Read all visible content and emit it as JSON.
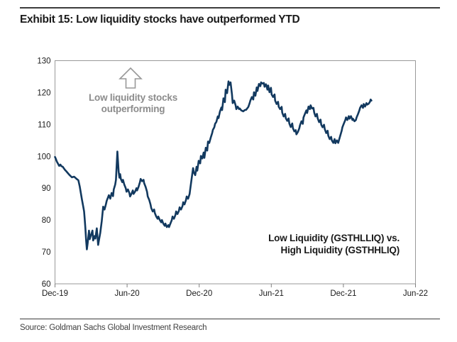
{
  "header": {
    "title": "Exhibit 15: Low liquidity stocks have outperformed YTD"
  },
  "annotation": {
    "line1": "Low liquidity stocks",
    "line2": "outperforming"
  },
  "legend": {
    "line1": "Low Liquidity (GSTHLLIQ) vs.",
    "line2": "High Liquidity (GSTHHLIQ)"
  },
  "footer": {
    "source": "Source: Goldman Sachs Global Investment Research"
  },
  "icons": {
    "annotation_arrow": "up-block-arrow"
  },
  "colors": {
    "line": "#12395f",
    "plot_border": "#999999",
    "axis": "#808080",
    "tick_text": "#1a1a1a",
    "title_text": "#1a1a1a",
    "annotation_text": "#8c8c8c",
    "legend_text": "#1a1a1a",
    "source_text": "#404040",
    "arrow_outline": "#999999"
  },
  "chart_data": {
    "type": "line",
    "title": "Exhibit 15: Low liquidity stocks have outperformed YTD",
    "xlabel": "",
    "ylabel": "",
    "x_unit": "months since Dec-2019",
    "x_tick_months": [
      0,
      6,
      12,
      18,
      24,
      30
    ],
    "x_tick_labels": [
      "Dec-19",
      "Jun-20",
      "Dec-20",
      "Jun-21",
      "Dec-21",
      "Jun-22"
    ],
    "xlim": [
      0,
      30
    ],
    "y_ticks": [
      60,
      70,
      80,
      90,
      100,
      110,
      120,
      130
    ],
    "ylim": [
      60,
      130
    ],
    "grid": false,
    "legend_position": "inside-bottom-right",
    "series": [
      {
        "name": "Low Liquidity (GSTHLLIQ) vs. High Liquidity (GSTHHLIQ)",
        "color": "#12395f",
        "points": [
          [
            0,
            99.8
          ],
          [
            0.06,
            99.3
          ],
          [
            0.15,
            98.4
          ],
          [
            0.35,
            97.0
          ],
          [
            0.45,
            97.4
          ],
          [
            0.53,
            96.9
          ],
          [
            0.65,
            96.7
          ],
          [
            0.82,
            95.8
          ],
          [
            0.94,
            95.3
          ],
          [
            1.12,
            94.5
          ],
          [
            1.24,
            94.0
          ],
          [
            1.41,
            93.4
          ],
          [
            1.59,
            93.6
          ],
          [
            1.71,
            93.2
          ],
          [
            1.83,
            92.8
          ],
          [
            1.94,
            92.5
          ],
          [
            2.06,
            90.5
          ],
          [
            2.24,
            86.5
          ],
          [
            2.36,
            84.0
          ],
          [
            2.42,
            82.7
          ],
          [
            2.47,
            80.5
          ],
          [
            2.53,
            77.5
          ],
          [
            2.59,
            73.5
          ],
          [
            2.65,
            70.8
          ],
          [
            2.71,
            72.5
          ],
          [
            2.83,
            76.7
          ],
          [
            2.89,
            74.0
          ],
          [
            3.01,
            75.5
          ],
          [
            3.12,
            76.7
          ],
          [
            3.18,
            73.6
          ],
          [
            3.3,
            75.0
          ],
          [
            3.36,
            74.2
          ],
          [
            3.48,
            77.4
          ],
          [
            3.59,
            72.2
          ],
          [
            3.65,
            73.5
          ],
          [
            3.77,
            76.0
          ],
          [
            3.89,
            79.7
          ],
          [
            4.01,
            84.2
          ],
          [
            4.12,
            83.3
          ],
          [
            4.24,
            85.0
          ],
          [
            4.3,
            86.0
          ],
          [
            4.48,
            87.8
          ],
          [
            4.6,
            86.7
          ],
          [
            4.71,
            88.5
          ],
          [
            4.83,
            87.5
          ],
          [
            4.89,
            89.6
          ],
          [
            5.01,
            91.1
          ],
          [
            5.07,
            92.6
          ],
          [
            5.19,
            101.5
          ],
          [
            5.3,
            95.2
          ],
          [
            5.36,
            93.3
          ],
          [
            5.42,
            94.4
          ],
          [
            5.48,
            92.9
          ],
          [
            5.6,
            91.9
          ],
          [
            5.66,
            92.6
          ],
          [
            5.77,
            91.1
          ],
          [
            5.89,
            90.0
          ],
          [
            5.95,
            88.9
          ],
          [
            6.07,
            89.6
          ],
          [
            6.19,
            88.5
          ],
          [
            6.25,
            87.4
          ],
          [
            6.36,
            88.2
          ],
          [
            6.48,
            89.3
          ],
          [
            6.54,
            88.2
          ],
          [
            6.66,
            88.9
          ],
          [
            6.78,
            90.0
          ],
          [
            6.83,
            89.3
          ],
          [
            6.95,
            90.4
          ],
          [
            7.07,
            91.9
          ],
          [
            7.13,
            92.9
          ],
          [
            7.25,
            92.2
          ],
          [
            7.37,
            92.6
          ],
          [
            7.42,
            91.6
          ],
          [
            7.54,
            90.4
          ],
          [
            7.66,
            88.9
          ],
          [
            7.72,
            87.4
          ],
          [
            7.84,
            86.3
          ],
          [
            7.95,
            84.9
          ],
          [
            8.01,
            83.8
          ],
          [
            8.13,
            82.7
          ],
          [
            8.25,
            83.3
          ],
          [
            8.31,
            82.2
          ],
          [
            8.43,
            81.1
          ],
          [
            8.54,
            80.4
          ],
          [
            8.6,
            81.1
          ],
          [
            8.72,
            80.0
          ],
          [
            8.84,
            79.3
          ],
          [
            8.9,
            80.0
          ],
          [
            9.01,
            78.9
          ],
          [
            9.13,
            78.2
          ],
          [
            9.19,
            78.9
          ],
          [
            9.31,
            77.8
          ],
          [
            9.43,
            78.4
          ],
          [
            9.49,
            77.8
          ],
          [
            9.6,
            78.9
          ],
          [
            9.72,
            80.0
          ],
          [
            9.78,
            81.1
          ],
          [
            9.9,
            80.4
          ],
          [
            10.02,
            81.6
          ],
          [
            10.08,
            82.7
          ],
          [
            10.19,
            81.9
          ],
          [
            10.31,
            82.9
          ],
          [
            10.37,
            84.0
          ],
          [
            10.49,
            83.3
          ],
          [
            10.61,
            84.4
          ],
          [
            10.67,
            85.6
          ],
          [
            10.78,
            84.9
          ],
          [
            10.9,
            86.3
          ],
          [
            10.96,
            87.4
          ],
          [
            11.08,
            86.7
          ],
          [
            11.2,
            88.2
          ],
          [
            11.25,
            89.6
          ],
          [
            11.37,
            92.9
          ],
          [
            11.49,
            96.3
          ],
          [
            11.55,
            95.0
          ],
          [
            11.67,
            94.1
          ],
          [
            11.78,
            96.7
          ],
          [
            11.84,
            95.5
          ],
          [
            11.96,
            98.6
          ],
          [
            12.08,
            97.8
          ],
          [
            12.14,
            100.1
          ],
          [
            12.26,
            99.3
          ],
          [
            12.37,
            101.2
          ],
          [
            12.43,
            99.5
          ],
          [
            12.55,
            102.7
          ],
          [
            12.67,
            101.8
          ],
          [
            12.73,
            104.6
          ],
          [
            12.84,
            104.2
          ],
          [
            12.96,
            105.9
          ],
          [
            13.08,
            107.3
          ],
          [
            13.14,
            108.3
          ],
          [
            13.26,
            109.1
          ],
          [
            13.32,
            110.2
          ],
          [
            13.43,
            110.8
          ],
          [
            13.55,
            112.5
          ],
          [
            13.61,
            112.0
          ],
          [
            13.73,
            114.1
          ],
          [
            13.85,
            115.3
          ],
          [
            13.91,
            114.5
          ],
          [
            14.02,
            118.2
          ],
          [
            14.14,
            117.0
          ],
          [
            14.2,
            120.9
          ],
          [
            14.32,
            119.8
          ],
          [
            14.44,
            123.5
          ],
          [
            14.5,
            122.4
          ],
          [
            14.61,
            123.2
          ],
          [
            14.73,
            119.4
          ],
          [
            14.79,
            116.7
          ],
          [
            14.91,
            117.5
          ],
          [
            15.03,
            116.0
          ],
          [
            15.09,
            114.8
          ],
          [
            15.2,
            115.6
          ],
          [
            15.32,
            114.8
          ],
          [
            15.38,
            115.0
          ],
          [
            15.5,
            114.4
          ],
          [
            15.67,
            114.1
          ],
          [
            15.79,
            114.5
          ],
          [
            15.91,
            114.6
          ],
          [
            16.09,
            115.5
          ],
          [
            16.2,
            116.7
          ],
          [
            16.26,
            117.5
          ],
          [
            16.38,
            118.6
          ],
          [
            16.5,
            117.8
          ],
          [
            16.56,
            120.1
          ],
          [
            16.68,
            119.0
          ],
          [
            16.79,
            121.6
          ],
          [
            16.85,
            120.5
          ],
          [
            16.97,
            122.7
          ],
          [
            17.09,
            122.0
          ],
          [
            17.15,
            123.2
          ],
          [
            17.26,
            122.8
          ],
          [
            17.38,
            123.0
          ],
          [
            17.44,
            121.8
          ],
          [
            17.56,
            122.6
          ],
          [
            17.68,
            120.9
          ],
          [
            17.74,
            122.2
          ],
          [
            17.85,
            120.1
          ],
          [
            17.97,
            121.5
          ],
          [
            18.03,
            119.4
          ],
          [
            18.15,
            118.6
          ],
          [
            18.27,
            119.4
          ],
          [
            18.32,
            117.5
          ],
          [
            18.44,
            116.4
          ],
          [
            18.56,
            117.1
          ],
          [
            18.62,
            115.5
          ],
          [
            18.74,
            114.8
          ],
          [
            18.86,
            115.5
          ],
          [
            18.91,
            113.7
          ],
          [
            19.03,
            112.5
          ],
          [
            19.15,
            113.3
          ],
          [
            19.21,
            111.9
          ],
          [
            19.33,
            111.1
          ],
          [
            19.44,
            111.9
          ],
          [
            19.5,
            110.3
          ],
          [
            19.62,
            109.2
          ],
          [
            19.74,
            110.3
          ],
          [
            19.8,
            108.8
          ],
          [
            19.92,
            107.8
          ],
          [
            20.03,
            108.2
          ],
          [
            20.09,
            106.9
          ],
          [
            20.21,
            107.6
          ],
          [
            20.33,
            108.8
          ],
          [
            20.39,
            109.8
          ],
          [
            20.51,
            111.0
          ],
          [
            20.62,
            110.2
          ],
          [
            20.68,
            112.2
          ],
          [
            20.8,
            113.3
          ],
          [
            20.92,
            114.4
          ],
          [
            20.98,
            113.6
          ],
          [
            21.1,
            115.6
          ],
          [
            21.21,
            114.8
          ],
          [
            21.27,
            116.0
          ],
          [
            21.39,
            115.0
          ],
          [
            21.51,
            115.2
          ],
          [
            21.57,
            113.7
          ],
          [
            21.68,
            112.5
          ],
          [
            21.8,
            113.3
          ],
          [
            21.86,
            111.9
          ],
          [
            21.98,
            110.7
          ],
          [
            22.1,
            111.5
          ],
          [
            22.16,
            109.9
          ],
          [
            22.27,
            109.1
          ],
          [
            22.39,
            109.9
          ],
          [
            22.45,
            108.5
          ],
          [
            22.57,
            107.3
          ],
          [
            22.69,
            108.0
          ],
          [
            22.74,
            106.5
          ],
          [
            22.86,
            105.4
          ],
          [
            22.98,
            106.1
          ],
          [
            23.04,
            105.0
          ],
          [
            23.16,
            104.2
          ],
          [
            23.27,
            105.4
          ],
          [
            23.33,
            104.1
          ],
          [
            23.45,
            105.0
          ],
          [
            23.57,
            104.2
          ],
          [
            23.63,
            105.0
          ],
          [
            23.74,
            106.5
          ],
          [
            23.86,
            108.0
          ],
          [
            23.92,
            109.1
          ],
          [
            24.04,
            110.3
          ],
          [
            24.16,
            111.4
          ],
          [
            24.22,
            112.2
          ],
          [
            24.33,
            111.4
          ],
          [
            24.45,
            112.6
          ],
          [
            24.51,
            111.8
          ],
          [
            24.63,
            112.6
          ],
          [
            24.75,
            111.4
          ],
          [
            24.8,
            111.8
          ],
          [
            24.92,
            111.0
          ],
          [
            25.04,
            111.4
          ],
          [
            25.1,
            112.2
          ],
          [
            25.22,
            113.3
          ],
          [
            25.33,
            114.4
          ],
          [
            25.39,
            115.2
          ],
          [
            25.51,
            116.0
          ],
          [
            25.63,
            115.2
          ],
          [
            25.69,
            116.4
          ],
          [
            25.8,
            115.6
          ],
          [
            25.92,
            116.7
          ],
          [
            25.98,
            116.2
          ],
          [
            26.1,
            116.5
          ],
          [
            26.21,
            117.1
          ],
          [
            26.27,
            117.8
          ],
          [
            26.33,
            117.5
          ]
        ]
      }
    ],
    "annotations": [
      {
        "text": "Low liquidity stocks outperforming",
        "style": "gray-bold-with-up-arrow"
      },
      {
        "text": "Low Liquidity (GSTHLLIQ) vs. High Liquidity (GSTHHLIQ)",
        "style": "bold-dark"
      }
    ]
  }
}
